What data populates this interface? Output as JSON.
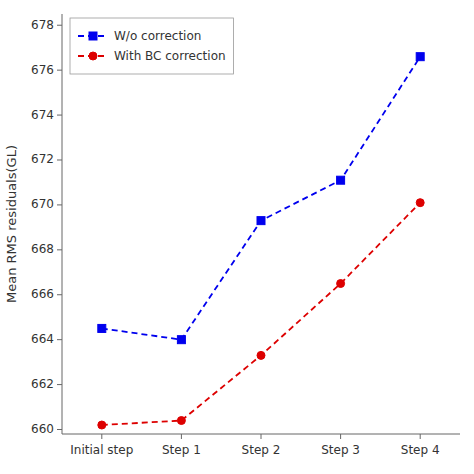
{
  "chart_data": {
    "type": "line",
    "categories": [
      "Initial step",
      "Step 1",
      "Step 2",
      "Step 3",
      "Step 4"
    ],
    "series": [
      {
        "name": "W/o correction",
        "color": "#0000EE",
        "values": [
          664.5,
          664.0,
          669.3,
          671.1,
          676.6
        ],
        "marker": "square",
        "line_style": "dashed"
      },
      {
        "name": "With BC correction",
        "color": "#DD0000",
        "values": [
          660.2,
          660.4,
          663.3,
          666.5,
          670.1
        ],
        "marker": "circle",
        "line_style": "dashed"
      }
    ],
    "y_label": "Mean RMS residuals(GL)",
    "ylim": [
      659.8,
      678.5
    ],
    "yticks": [
      660,
      662,
      664,
      666,
      668,
      670,
      672,
      674,
      676,
      678
    ],
    "grid": false,
    "legend": "upper left"
  }
}
